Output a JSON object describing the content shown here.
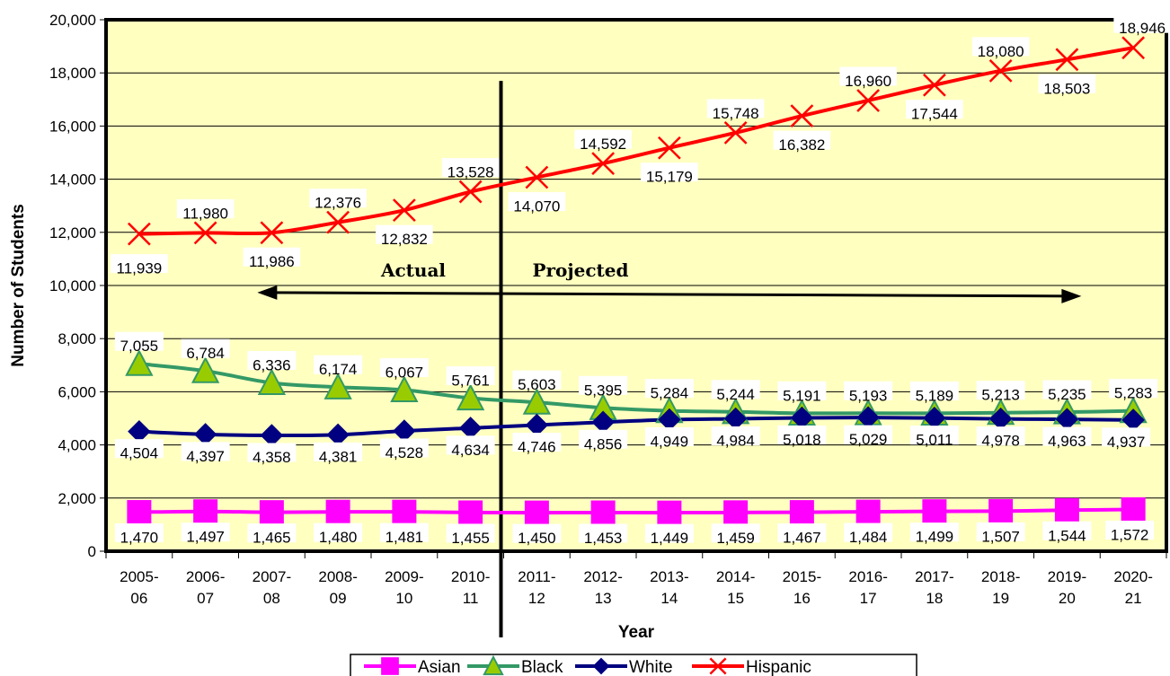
{
  "chart_data": {
    "type": "line",
    "title": "",
    "xlabel": "Year",
    "ylabel": "Number of Students",
    "ylim": [
      0,
      20000
    ],
    "y_ticks": [
      "0",
      "2,000",
      "4,000",
      "6,000",
      "8,000",
      "10,000",
      "12,000",
      "14,000",
      "16,000",
      "18,000",
      "20,000"
    ],
    "categories": [
      [
        "2005-",
        "06"
      ],
      [
        "2006-",
        "07"
      ],
      [
        "2007-",
        "08"
      ],
      [
        "2008-",
        "09"
      ],
      [
        "2009-",
        "10"
      ],
      [
        "2010-",
        "11"
      ],
      [
        "2011-",
        "12"
      ],
      [
        "2012-",
        "13"
      ],
      [
        "2013-",
        "14"
      ],
      [
        "2014-",
        "15"
      ],
      [
        "2015-",
        "16"
      ],
      [
        "2016-",
        "17"
      ],
      [
        "2017-",
        "18"
      ],
      [
        "2018-",
        "19"
      ],
      [
        "2019-",
        "20"
      ],
      [
        "2020-",
        "21"
      ]
    ],
    "grid": "horizontal",
    "legend_position": "bottom",
    "plot_background": "#FFFFC0",
    "annotations": {
      "actual_label": "Actual",
      "projected_label": "Projected",
      "divider_after_category": "2010-11"
    },
    "series": [
      {
        "name": "Asian",
        "color": "#FF00FF",
        "marker": "square",
        "values": [
          1470,
          1497,
          1465,
          1480,
          1481,
          1455,
          1450,
          1453,
          1449,
          1459,
          1467,
          1484,
          1499,
          1507,
          1544,
          1572
        ],
        "labels": [
          "1,470",
          "1,497",
          "1,465",
          "1,480",
          "1,481",
          "1,455",
          "1,450",
          "1,453",
          "1,449",
          "1,459",
          "1,467",
          "1,484",
          "1,499",
          "1,507",
          "1,544",
          "1,572"
        ]
      },
      {
        "name": "Black",
        "color": "#339966",
        "marker": "triangle",
        "values": [
          7055,
          6784,
          6336,
          6174,
          6067,
          5761,
          5603,
          5395,
          5284,
          5244,
          5191,
          5193,
          5189,
          5213,
          5235,
          5283
        ],
        "labels": [
          "7,055",
          "6,784",
          "6,336",
          "6,174",
          "6,067",
          "5,761",
          "5,603",
          "5,395",
          "5,284",
          "5,244",
          "5,191",
          "5,193",
          "5,189",
          "5,213",
          "5,235",
          "5,283"
        ]
      },
      {
        "name": "White",
        "color": "#000080",
        "marker": "diamond",
        "values": [
          4504,
          4397,
          4358,
          4381,
          4528,
          4634,
          4746,
          4856,
          4949,
          4984,
          5018,
          5029,
          5011,
          4978,
          4963,
          4937
        ],
        "labels": [
          "4,504",
          "4,397",
          "4,358",
          "4,381",
          "4,528",
          "4,634",
          "4,746",
          "4,856",
          "4,949",
          "4,984",
          "5,018",
          "5,029",
          "5,011",
          "4,978",
          "4,963",
          "4,937"
        ]
      },
      {
        "name": "Hispanic",
        "color": "#FF0000",
        "marker": "x",
        "values": [
          11939,
          11980,
          11986,
          12376,
          12832,
          13528,
          14070,
          14592,
          15179,
          15748,
          16382,
          16960,
          17544,
          18080,
          18503,
          18946
        ],
        "labels": [
          "11,939",
          "11,980",
          "11,986",
          "12,376",
          "12,832",
          "13,528",
          "14,070",
          "14,592",
          "15,179",
          "15,748",
          "16,382",
          "16,960",
          "17,544",
          "18,080",
          "18,503",
          "18,946"
        ]
      }
    ]
  }
}
